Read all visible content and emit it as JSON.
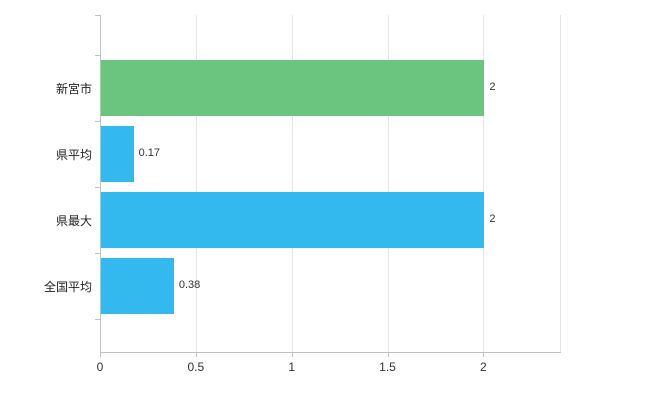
{
  "chart_data": {
    "type": "bar",
    "orientation": "horizontal",
    "title": "",
    "xlabel": "",
    "ylabel": "",
    "categories": [
      "新宮市",
      "県平均",
      "県最大",
      "全国平均"
    ],
    "values": [
      2,
      0.17,
      2,
      0.38
    ],
    "value_labels": [
      "2",
      "0.17",
      "2",
      "0.38"
    ],
    "bar_colors": [
      "#6cc57f",
      "#34b9ef",
      "#34b9ef",
      "#34b9ef"
    ],
    "xticks": [
      0,
      0.5,
      1,
      1.5,
      2
    ],
    "xtick_labels": [
      "0",
      "0.5",
      "1",
      "1.5",
      "2"
    ],
    "xlim": [
      0,
      2.4
    ],
    "grid": true,
    "legend": false,
    "colors": {
      "grid": "#e5e5e5",
      "axis": "#c0c0c0",
      "text": "#333333",
      "background": "#ffffff"
    }
  }
}
